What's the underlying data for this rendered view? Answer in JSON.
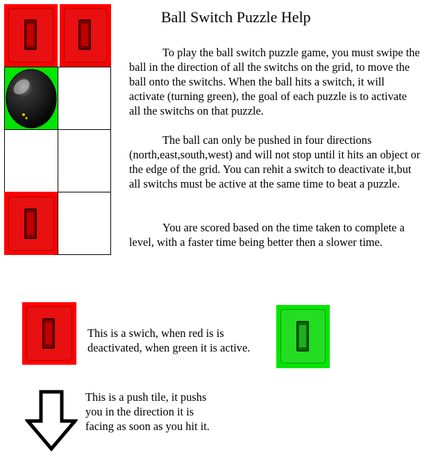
{
  "help": {
    "title": "Ball Switch Puzzle Help",
    "paragraphs": [
      "To play the ball switch puzzle game, you must swipe the ball in the direction of all the switchs on the grid, to move the ball onto the switchs. When the ball hits a switch, it will activate (turning green), the goal of each puzzle is to activate all the switchs on that puzzle.",
      "The ball can only be pushed in four directions (north,east,south,west) and will not stop until it hits an object or the edge of the grid. You can rehit a switch to deactivate it,but all switchs must be active at the same time to beat a puzzle.",
      "You are scored based on the time taken to complete a level, with a faster time being better then a slower time."
    ]
  },
  "grid": {
    "rows": [
      [
        "switch-red",
        "switch-red"
      ],
      [
        "ball-on-green",
        "empty"
      ],
      [
        "empty",
        "empty"
      ],
      [
        "switch-red",
        "empty"
      ]
    ]
  },
  "legend": {
    "switch_text": "This is a swich, when red is is deactivated, when green it is active.",
    "push_text": "This is a push tile, it pushs you in the direction it is facing as soon as you hit it.",
    "push_direction": "down"
  },
  "colors": {
    "switch_off": "#ff0000",
    "switch_on": "#00e600",
    "ball": "#111111"
  }
}
